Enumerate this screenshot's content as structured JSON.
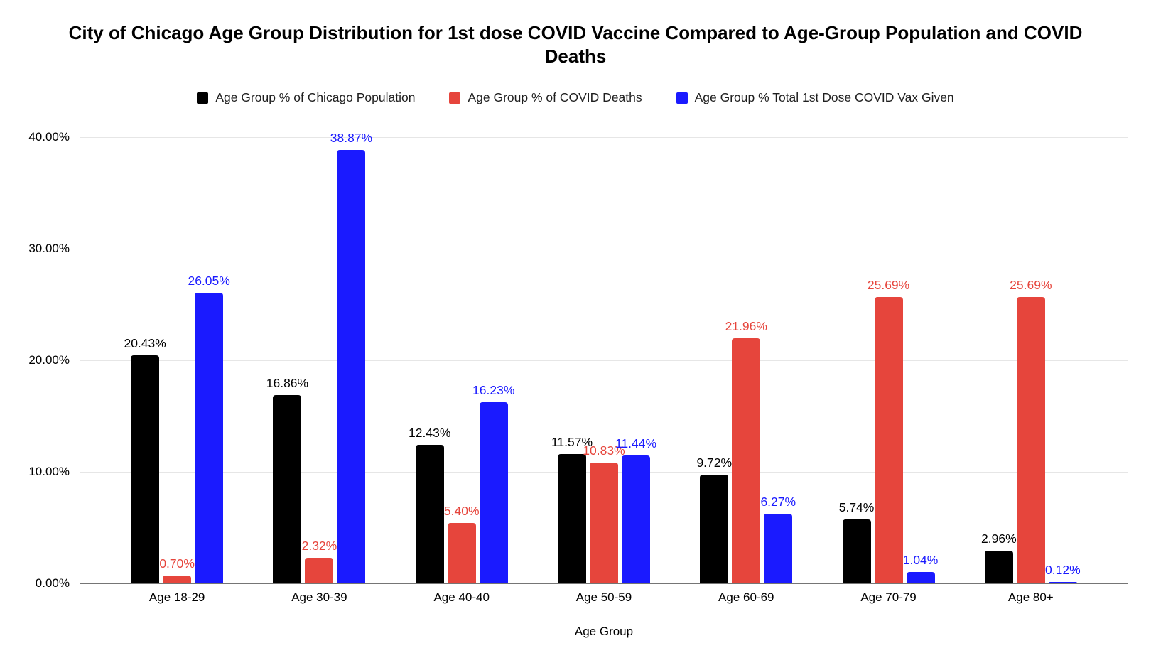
{
  "chart_data": {
    "type": "bar",
    "title": "City of Chicago Age Group Distribution for 1st dose COVID Vaccine Compared to Age-Group Population and COVID Deaths",
    "categories": [
      "Age 18-29",
      "Age 30-39",
      "Age 40-40",
      "Age 50-59",
      "Age 60-69",
      "Age 70-79",
      "Age 80+"
    ],
    "series": [
      {
        "name": "Age Group % of Chicago Population",
        "color": "#000000",
        "values": [
          20.43,
          16.86,
          12.43,
          11.57,
          9.72,
          5.74,
          2.96
        ],
        "labels": [
          "20.43%",
          "16.86%",
          "12.43%",
          "11.57%",
          "9.72%",
          "5.74%",
          "2.96%"
        ]
      },
      {
        "name": "Age Group % of COVID Deaths",
        "color": "#e6453c",
        "values": [
          0.7,
          2.32,
          5.4,
          10.83,
          21.96,
          25.69,
          25.69
        ],
        "labels": [
          "0.70%",
          "2.32%",
          "5.40%",
          "10.83%",
          "21.96%",
          "25.69%",
          "25.69%"
        ]
      },
      {
        "name": "Age Group % Total 1st Dose COVID Vax Given",
        "color": "#1a1aff",
        "values": [
          26.05,
          38.87,
          16.23,
          11.44,
          6.27,
          1.04,
          0.12
        ],
        "labels": [
          "26.05%",
          "38.87%",
          "16.23%",
          "11.44%",
          "6.27%",
          "1.04%",
          "0.12%"
        ]
      }
    ],
    "xlabel": "Age Group",
    "ylabel": "",
    "ylim": [
      0,
      40
    ],
    "yticks": [
      "0.00%",
      "10.00%",
      "20.00%",
      "30.00%",
      "40.00%"
    ],
    "grid": true,
    "legend_position": "top",
    "gridline_color": "#e6e6e6",
    "axis_line_color": "#757575",
    "background_color": "#ffffff"
  }
}
